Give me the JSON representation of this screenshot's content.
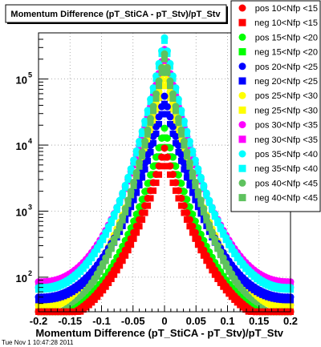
{
  "chart_data": {
    "type": "scatter",
    "title": "Momentum Difference (pT_StiCA - pT_Stv)/pT_Stv",
    "xlabel": "Momentum Difference (pT_StiCA - pT_Stv)/pT_Stv",
    "ylabel": "",
    "xlim": [
      -0.2,
      0.2
    ],
    "ylim": [
      30,
      500000
    ],
    "y_scale": "log",
    "x_ticks": [
      "-0.2",
      "-0.15",
      "-0.1",
      "-0.05",
      "0",
      "0.05",
      "0.1",
      "0.15",
      "0.2"
    ],
    "x_tick_values": [
      -0.2,
      -0.15,
      -0.1,
      -0.05,
      0,
      0.05,
      0.1,
      0.15,
      0.2
    ],
    "y_ticks": [
      {
        "base": "10",
        "exp": "2",
        "value": 100
      },
      {
        "base": "10",
        "exp": "3",
        "value": 1000
      },
      {
        "base": "10",
        "exp": "4",
        "value": 10000
      },
      {
        "base": "10",
        "exp": "5",
        "value": 100000
      }
    ],
    "grid": true,
    "legend_position": "right",
    "timestamp": "Tue Nov  1 10:47:28 2011",
    "series": [
      {
        "name": "pos 10<Nfp <15",
        "color": "#ff0000",
        "marker": "circle",
        "peak": 9000,
        "tail": 22
      },
      {
        "name": "neg 10<Nfp <15",
        "color": "#ff0000",
        "marker": "square",
        "peak": 6500,
        "tail": 20
      },
      {
        "name": "pos 15<Nfp <20",
        "color": "#00ff00",
        "marker": "circle",
        "peak": 18000,
        "tail": 24
      },
      {
        "name": "neg 15<Nfp <20",
        "color": "#00ff00",
        "marker": "square",
        "peak": 13000,
        "tail": 22
      },
      {
        "name": "pos 20<Nfp <25",
        "color": "#0000ff",
        "marker": "circle",
        "peak": 55000,
        "tail": 50
      },
      {
        "name": "neg 20<Nfp <25",
        "color": "#0000ff",
        "marker": "square",
        "peak": 42000,
        "tail": 45
      },
      {
        "name": "pos 25<Nfp <30",
        "color": "#ffff00",
        "marker": "circle",
        "peak": 150000,
        "tail": 38
      },
      {
        "name": "neg 25<Nfp <30",
        "color": "#ffff00",
        "marker": "square",
        "peak": 120000,
        "tail": 35
      },
      {
        "name": "pos 30<Nfp <35",
        "color": "#ff00ff",
        "marker": "circle",
        "peak": 280000,
        "tail": 85
      },
      {
        "name": "neg 30<Nfp <35",
        "color": "#ff00ff",
        "marker": "square",
        "peak": 260000,
        "tail": 80
      },
      {
        "name": "pos 35<Nfp <40",
        "color": "#00ffff",
        "marker": "circle",
        "peak": 420000,
        "tail": 70
      },
      {
        "name": "neg 35<Nfp <40",
        "color": "#00ffff",
        "marker": "square",
        "peak": 380000,
        "tail": 65
      },
      {
        "name": "pos 40<Nfp <45",
        "color": "#5ec25e",
        "marker": "circle",
        "peak": 240000,
        "tail": 26
      },
      {
        "name": "neg 40<Nfp <45",
        "color": "#5ec25e",
        "marker": "square",
        "peak": 200000,
        "tail": 24
      }
    ]
  }
}
